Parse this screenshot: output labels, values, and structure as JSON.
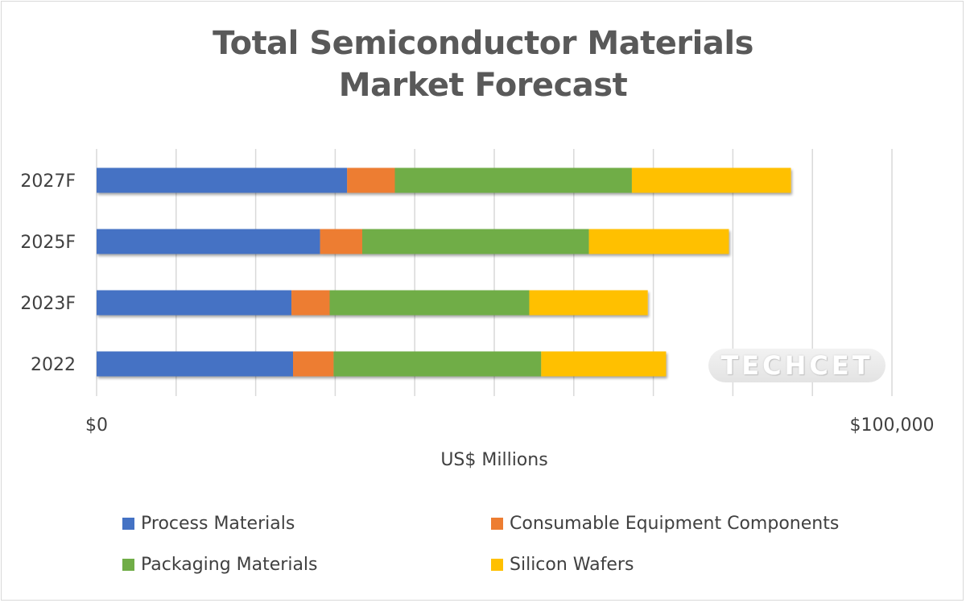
{
  "chart_data": {
    "type": "bar",
    "orientation": "horizontal",
    "stacked": true,
    "title": "Total Semiconductor Materials Market Forecast",
    "title_lines": [
      "Total Semiconductor Materials",
      "Market Forecast"
    ],
    "xlabel": "US$ Millions",
    "ylabel": "",
    "xlim": [
      0,
      100000
    ],
    "x_tick_labels": [
      "$0",
      "$100,000"
    ],
    "gridlines": true,
    "legend_position": "bottom",
    "categories": [
      "2022",
      "2023F",
      "2025F",
      "2027F"
    ],
    "series": [
      {
        "name": "Process Materials",
        "color": "#4472c4",
        "values": [
          24700,
          24500,
          28100,
          31500
        ]
      },
      {
        "name": "Consumable Equipment Components",
        "color": "#ed7d31",
        "values": [
          5100,
          4800,
          5300,
          6000
        ]
      },
      {
        "name": "Packaging Materials",
        "color": "#70ad47",
        "values": [
          26100,
          25100,
          28500,
          29800
        ]
      },
      {
        "name": "Silicon Wafers",
        "color": "#ffc000",
        "values": [
          15700,
          14900,
          17600,
          20000
        ]
      }
    ]
  },
  "watermark": "TECHCET"
}
